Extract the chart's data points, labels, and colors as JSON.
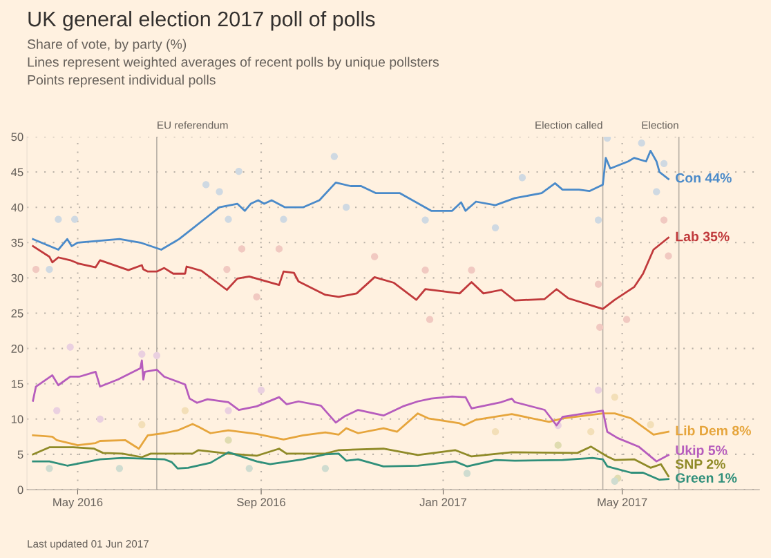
{
  "chart_data": {
    "type": "line",
    "title": "UK general election 2017 poll of polls",
    "subtitle": "Share of vote, by party (%)\nLines represent weighted averages of recent polls by unique pollsters\nPoints represent individual polls",
    "annotations": [
      "Last updated 01 Jun 2017"
    ],
    "xlim": [
      "2016-03-28",
      "2017-08-01"
    ],
    "xticks": [
      {
        "value": "2016-05-01",
        "label": "May 2016"
      },
      {
        "value": "2016-09-01",
        "label": "Sep 2016"
      },
      {
        "value": "2017-01-01",
        "label": "Jan 2017"
      },
      {
        "value": "2017-05-01",
        "label": "May 2017"
      }
    ],
    "ylim": [
      0,
      50
    ],
    "yticks": [
      0,
      5,
      10,
      15,
      20,
      25,
      30,
      35,
      40,
      45,
      50
    ],
    "grid": true,
    "legend": false,
    "line_style": "solid",
    "ref_lines": [
      {
        "axis": "x",
        "value": "2016-06-23",
        "label": "EU referendum",
        "color": "#b8b0a6"
      },
      {
        "axis": "x",
        "value": "2017-04-18",
        "label": "Election called",
        "color": "#b8b0a6"
      },
      {
        "axis": "x",
        "value": "2017-06-08",
        "label": "Election",
        "color": "#b8b0a6"
      }
    ],
    "series": [
      {
        "type": "scatter",
        "marker": "circle",
        "color": "#cfd9e2",
        "x": [
          "2016-04-12",
          "2016-04-18",
          "2016-04-29",
          "2016-07-26",
          "2016-08-04",
          "2016-08-10",
          "2016-08-17",
          "2016-09-16",
          "2016-10-20",
          "2016-10-28",
          "2016-12-20",
          "2017-02-05",
          "2017-02-23",
          "2017-04-15",
          "2017-04-21",
          "2017-05-14",
          "2017-05-24",
          "2017-05-29"
        ],
        "values": [
          31.2,
          38.3,
          38.3,
          43.2,
          42.2,
          38.3,
          45.1,
          38.3,
          47.2,
          40,
          38.2,
          37.1,
          44.2,
          38.2,
          49.8,
          49.1,
          42.2,
          46.2
        ]
      },
      {
        "type": "scatter",
        "marker": "circle",
        "color": "#f1c9c1",
        "x": [
          "2016-04-03",
          "2016-08-09",
          "2016-08-19",
          "2016-08-29",
          "2016-09-13",
          "2016-11-16",
          "2016-12-20",
          "2016-12-23",
          "2017-01-20",
          "2017-04-15",
          "2017-04-16",
          "2017-05-04",
          "2017-05-29",
          "2017-06-01"
        ],
        "values": [
          31.2,
          31.2,
          34.1,
          27.3,
          34.1,
          33,
          31.1,
          24.1,
          31.1,
          29.1,
          23,
          24.1,
          38.2,
          33.1
        ]
      },
      {
        "type": "scatter",
        "marker": "circle",
        "color": "#ead0e0",
        "x": [
          "2016-04-17",
          "2016-04-26",
          "2016-05-16",
          "2016-06-13",
          "2016-06-23",
          "2016-08-10",
          "2016-09-01",
          "2017-03-19",
          "2017-04-15"
        ],
        "values": [
          11.2,
          20.2,
          10,
          19.2,
          19,
          11.2,
          14.1,
          9.1,
          14.1
        ]
      },
      {
        "type": "scatter",
        "marker": "circle",
        "color": "#f3dfb8",
        "x": [
          "2016-06-13",
          "2016-07-12",
          "2017-02-05",
          "2017-04-10",
          "2017-04-26",
          "2017-05-20"
        ],
        "values": [
          9.2,
          11.2,
          8.2,
          8.2,
          13.1,
          9.2
        ]
      },
      {
        "type": "scatter",
        "marker": "circle",
        "color": "#e0dcb0",
        "x": [
          "2016-08-10",
          "2017-03-19",
          "2017-04-28"
        ],
        "values": [
          7,
          6.3,
          1.6
        ]
      },
      {
        "type": "scatter",
        "marker": "circle",
        "color": "#cfdcd0",
        "x": [
          "2016-04-12",
          "2016-05-29",
          "2016-08-24",
          "2016-10-14",
          "2017-01-17",
          "2017-04-26"
        ],
        "values": [
          3,
          3,
          3,
          3,
          2.3,
          1.2
        ]
      },
      {
        "name": "Con 44%",
        "color": "#4a8ac9",
        "x": [
          "2016-04-01",
          "2016-04-18",
          "2016-04-24",
          "2016-04-27",
          "2016-05-01",
          "2016-05-29",
          "2016-06-12",
          "2016-06-26",
          "2016-07-08",
          "2016-07-17",
          "2016-07-26",
          "2016-08-04",
          "2016-08-16",
          "2016-08-21",
          "2016-08-25",
          "2016-08-30",
          "2016-09-03",
          "2016-09-08",
          "2016-09-17",
          "2016-09-29",
          "2016-10-10",
          "2016-10-21",
          "2016-10-31",
          "2016-11-07",
          "2016-11-17",
          "2016-11-23",
          "2016-12-03",
          "2016-12-24",
          "2017-01-07",
          "2017-01-13",
          "2017-01-16",
          "2017-01-23",
          "2017-02-05",
          "2017-02-18",
          "2017-03-08",
          "2017-03-17",
          "2017-03-22",
          "2017-04-02",
          "2017-04-09",
          "2017-04-18",
          "2017-04-20",
          "2017-04-23",
          "2017-05-05",
          "2017-05-09",
          "2017-05-17",
          "2017-05-20",
          "2017-05-24",
          "2017-05-26",
          "2017-06-01"
        ],
        "values": [
          35.5,
          34,
          35.5,
          34.5,
          35,
          35.5,
          35,
          34,
          35.5,
          37,
          38.5,
          40,
          40.5,
          39.5,
          40.5,
          41,
          40.5,
          41,
          40,
          40,
          41,
          43.5,
          43,
          43,
          42,
          42,
          42,
          39.5,
          39.5,
          40.7,
          39.5,
          40.8,
          40.3,
          41.3,
          42,
          43.4,
          42.5,
          42.5,
          42.3,
          43.2,
          47,
          45.5,
          46.5,
          47,
          46.5,
          48,
          46.5,
          45,
          44
        ]
      },
      {
        "name": "Lab 35%",
        "color": "#c0393b",
        "x": [
          "2016-04-01",
          "2016-04-12",
          "2016-04-14",
          "2016-04-18",
          "2016-04-26",
          "2016-05-02",
          "2016-05-13",
          "2016-05-16",
          "2016-06-04",
          "2016-06-13",
          "2016-06-14",
          "2016-06-17",
          "2016-06-23",
          "2016-06-28",
          "2016-07-04",
          "2016-07-12",
          "2016-07-13",
          "2016-07-23",
          "2016-08-09",
          "2016-08-16",
          "2016-08-24",
          "2016-09-13",
          "2016-09-16",
          "2016-09-23",
          "2016-09-26",
          "2016-10-14",
          "2016-10-23",
          "2016-11-04",
          "2016-11-16",
          "2016-11-29",
          "2016-12-14",
          "2016-12-20",
          "2017-01-12",
          "2017-01-20",
          "2017-01-28",
          "2017-02-09",
          "2017-02-18",
          "2017-03-10",
          "2017-03-18",
          "2017-03-26",
          "2017-04-15",
          "2017-04-18",
          "2017-04-26",
          "2017-05-09",
          "2017-05-15",
          "2017-05-22",
          "2017-06-01"
        ],
        "values": [
          34.5,
          33,
          32.2,
          32.9,
          32.5,
          32,
          31.5,
          32.5,
          31.1,
          31.8,
          31.2,
          30.9,
          30.9,
          31.4,
          30.6,
          30.6,
          31.6,
          31,
          28.3,
          29.9,
          30.2,
          29,
          30.9,
          30.7,
          29.5,
          27.6,
          27.3,
          27.8,
          30.1,
          29.3,
          26.9,
          28.4,
          27.8,
          29.4,
          27.8,
          28.3,
          26.8,
          27,
          28.4,
          27.1,
          25.8,
          25.6,
          26.9,
          28.7,
          30.6,
          34,
          35.7
        ]
      },
      {
        "name": "Lib Dem 8%",
        "color": "#e6a53c",
        "x": [
          "2016-04-01",
          "2016-04-14",
          "2016-04-17",
          "2016-05-01",
          "2016-05-13",
          "2016-05-16",
          "2016-06-02",
          "2016-06-11",
          "2016-06-17",
          "2016-06-28",
          "2016-07-07",
          "2016-07-17",
          "2016-07-21",
          "2016-07-29",
          "2016-08-10",
          "2016-08-29",
          "2016-09-16",
          "2016-09-29",
          "2016-10-14",
          "2016-10-23",
          "2016-10-28",
          "2016-11-05",
          "2016-11-22",
          "2016-12-01",
          "2016-12-15",
          "2016-12-22",
          "2017-01-12",
          "2017-01-15",
          "2017-01-23",
          "2017-02-16",
          "2017-03-13",
          "2017-03-22",
          "2017-04-18",
          "2017-04-26",
          "2017-05-07",
          "2017-05-22",
          "2017-06-01"
        ],
        "values": [
          7.7,
          7.5,
          7,
          6.3,
          6.6,
          6.9,
          7,
          5.8,
          7.7,
          8,
          8.4,
          9.3,
          8.9,
          8,
          8.4,
          7.9,
          7.1,
          7.7,
          8.1,
          7.8,
          8.7,
          8,
          8.7,
          8.2,
          10.8,
          10.1,
          9.4,
          9.1,
          9.9,
          10.7,
          9.6,
          10.1,
          10.8,
          10.8,
          10.1,
          7.8,
          8.2
        ]
      },
      {
        "name": "Ukip 5%",
        "color": "#b65cbd",
        "x": [
          "2016-04-01",
          "2016-04-03",
          "2016-04-14",
          "2016-04-18",
          "2016-04-26",
          "2016-05-02",
          "2016-05-13",
          "2016-05-16",
          "2016-05-28",
          "2016-06-12",
          "2016-06-13",
          "2016-06-14",
          "2016-06-15",
          "2016-06-23",
          "2016-06-28",
          "2016-07-03",
          "2016-07-12",
          "2016-07-15",
          "2016-07-20",
          "2016-07-27",
          "2016-08-10",
          "2016-08-17",
          "2016-08-29",
          "2016-09-13",
          "2016-09-18",
          "2016-09-26",
          "2016-10-11",
          "2016-10-21",
          "2016-10-27",
          "2016-11-05",
          "2016-11-22",
          "2016-12-05",
          "2016-12-15",
          "2016-12-24",
          "2017-01-07",
          "2017-01-16",
          "2017-01-20",
          "2017-02-09",
          "2017-02-16",
          "2017-02-18",
          "2017-03-10",
          "2017-03-18",
          "2017-03-22",
          "2017-04-18",
          "2017-04-21",
          "2017-04-28",
          "2017-05-12",
          "2017-05-24",
          "2017-06-01"
        ],
        "values": [
          12.6,
          14.6,
          16.2,
          14.8,
          16,
          16,
          16.7,
          14.6,
          15.6,
          17.2,
          18.3,
          15.6,
          16.7,
          17,
          16,
          15.6,
          14.9,
          12.9,
          12.3,
          12.8,
          12.4,
          11.3,
          11.8,
          13.1,
          12.1,
          12.5,
          11.9,
          9.5,
          10.4,
          11.3,
          10.5,
          11.8,
          12.5,
          12.9,
          13.2,
          13.1,
          11.5,
          12.4,
          12.9,
          12.4,
          11.3,
          9.1,
          10.3,
          11.2,
          8.2,
          7.3,
          6.1,
          4,
          4.9
        ]
      },
      {
        "name": "SNP 2%",
        "color": "#8f8a27",
        "x": [
          "2016-04-01",
          "2016-04-12",
          "2016-04-28",
          "2016-05-12",
          "2016-05-18",
          "2016-05-31",
          "2016-06-13",
          "2016-06-19",
          "2016-07-04",
          "2016-07-17",
          "2016-07-21",
          "2016-08-10",
          "2016-08-29",
          "2016-09-13",
          "2016-09-18",
          "2016-10-14",
          "2016-10-23",
          "2016-11-22",
          "2016-12-15",
          "2017-01-09",
          "2017-01-20",
          "2017-02-16",
          "2017-04-01",
          "2017-04-10",
          "2017-04-21",
          "2017-04-26",
          "2017-05-09",
          "2017-05-20",
          "2017-05-27",
          "2017-06-01"
        ],
        "values": [
          5,
          6,
          6,
          5.8,
          5.2,
          5.1,
          4.6,
          5.1,
          5.1,
          5.1,
          5.6,
          5.1,
          4.8,
          5.8,
          5.1,
          5.1,
          5.6,
          5.8,
          4.9,
          5.6,
          4.7,
          5.3,
          5.2,
          6.1,
          4.7,
          4.2,
          4.3,
          3.1,
          3.6,
          1.9
        ]
      },
      {
        "name": "Green 1%",
        "color": "#2f8f7a",
        "x": [
          "2016-04-01",
          "2016-04-12",
          "2016-04-24",
          "2016-05-16",
          "2016-05-31",
          "2016-06-28",
          "2016-07-03",
          "2016-07-07",
          "2016-07-14",
          "2016-07-29",
          "2016-08-10",
          "2016-08-29",
          "2016-09-07",
          "2016-09-29",
          "2016-10-14",
          "2016-10-23",
          "2016-10-28",
          "2016-11-05",
          "2016-11-22",
          "2016-12-15",
          "2017-01-09",
          "2017-01-17",
          "2017-02-05",
          "2017-02-18",
          "2017-03-22",
          "2017-04-11",
          "2017-04-18",
          "2017-04-21",
          "2017-05-07",
          "2017-05-15",
          "2017-05-26",
          "2017-06-01"
        ],
        "values": [
          4,
          4,
          3.4,
          4.3,
          4.5,
          4.3,
          3.9,
          3,
          3.1,
          3.8,
          5.3,
          4,
          3.6,
          4.3,
          5,
          5.1,
          4.1,
          4.3,
          3.3,
          3.4,
          4,
          3.3,
          4.2,
          4.1,
          4.2,
          4.5,
          4.3,
          3.3,
          2.4,
          2.4,
          1.4,
          1.5
        ]
      }
    ]
  }
}
